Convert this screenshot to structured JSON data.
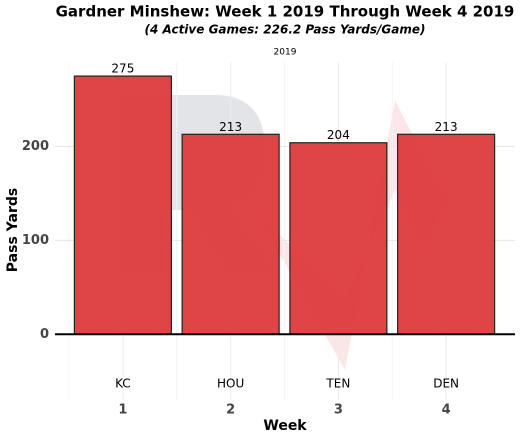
{
  "chart_data": {
    "type": "bar",
    "title": "Gardner Minshew: Week 1 2019 Through Week 4 2019",
    "subtitle": "(4 Active Games: 226.2 Pass Yards/Game)",
    "facet_label": "2019",
    "x_label": "Week",
    "y_label": "Pass Yards",
    "categories": [
      "1",
      "2",
      "3",
      "4"
    ],
    "opponents": [
      "KC",
      "HOU",
      "TEN",
      "DEN"
    ],
    "values": [
      275,
      213,
      204,
      213
    ],
    "color": "#dd3a3c",
    "ylim": [
      -70,
      290
    ],
    "yticks": [
      0,
      100,
      200
    ],
    "grid": true
  }
}
